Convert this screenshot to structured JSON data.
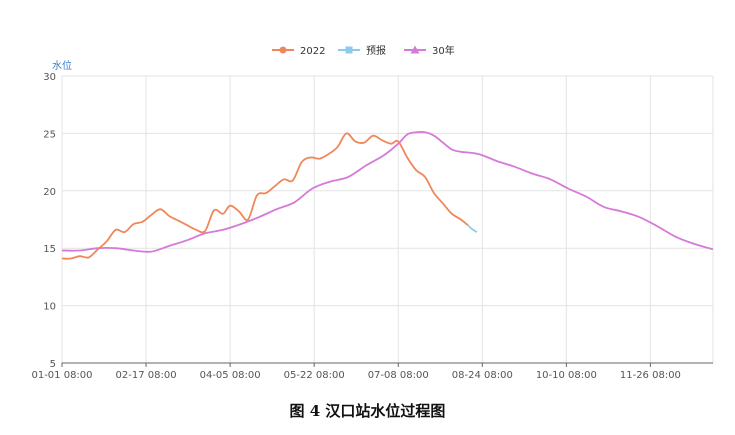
{
  "caption": "图 4    汉口站水位过程图",
  "chart_data": {
    "type": "line",
    "ylabel": "水位",
    "ylim": [
      5,
      30
    ],
    "yticks": [
      "5",
      "10",
      "15",
      "20",
      "25",
      "30"
    ],
    "xlim": [
      "01-01",
      "12-31"
    ],
    "xticks": [
      "01-01 08:00",
      "02-17 08:00",
      "04-05 08:00",
      "05-22 08:00",
      "07-08 08:00",
      "08-24 08:00",
      "10-10 08:00",
      "11-26 08:00"
    ],
    "grid": true,
    "legend_position": "top-center",
    "series": [
      {
        "name": "2022",
        "color": "#f0875a",
        "points": [
          [
            "01-01",
            14.1
          ],
          [
            "01-06",
            14.1
          ],
          [
            "01-11",
            14.3
          ],
          [
            "01-16",
            14.2
          ],
          [
            "01-21",
            14.9
          ],
          [
            "01-26",
            15.6
          ],
          [
            "01-31",
            16.6
          ],
          [
            "02-05",
            16.4
          ],
          [
            "02-10",
            17.1
          ],
          [
            "02-15",
            17.3
          ],
          [
            "02-20",
            17.9
          ],
          [
            "02-25",
            18.4
          ],
          [
            "03-02",
            17.8
          ],
          [
            "03-07",
            17.4
          ],
          [
            "03-12",
            17.0
          ],
          [
            "03-17",
            16.6
          ],
          [
            "03-22",
            16.5
          ],
          [
            "03-27",
            18.3
          ],
          [
            "04-01",
            18.0
          ],
          [
            "04-05",
            18.7
          ],
          [
            "04-10",
            18.2
          ],
          [
            "04-15",
            17.5
          ],
          [
            "04-20",
            19.6
          ],
          [
            "04-25",
            19.8
          ],
          [
            "04-30",
            20.4
          ],
          [
            "05-05",
            21.0
          ],
          [
            "05-10",
            20.9
          ],
          [
            "05-15",
            22.5
          ],
          [
            "05-20",
            22.9
          ],
          [
            "05-25",
            22.8
          ],
          [
            "05-30",
            23.2
          ],
          [
            "06-04",
            23.8
          ],
          [
            "06-09",
            25.0
          ],
          [
            "06-14",
            24.3
          ],
          [
            "06-19",
            24.2
          ],
          [
            "06-24",
            24.8
          ],
          [
            "06-29",
            24.4
          ],
          [
            "07-04",
            24.1
          ],
          [
            "07-08",
            24.3
          ],
          [
            "07-13",
            22.9
          ],
          [
            "07-18",
            21.8
          ],
          [
            "07-23",
            21.2
          ],
          [
            "07-28",
            19.8
          ],
          [
            "08-02",
            18.9
          ],
          [
            "08-07",
            18.0
          ],
          [
            "08-12",
            17.5
          ],
          [
            "08-16",
            17.0
          ]
        ]
      },
      {
        "name": "预报",
        "color": "#8fc9eb",
        "points": [
          [
            "08-16",
            17.0
          ],
          [
            "08-18",
            16.7
          ],
          [
            "08-21",
            16.4
          ]
        ]
      },
      {
        "name": "30年",
        "color": "#d57ad8",
        "points": [
          [
            "01-01",
            14.8
          ],
          [
            "01-11",
            14.8
          ],
          [
            "01-21",
            15.0
          ],
          [
            "01-31",
            15.0
          ],
          [
            "02-10",
            14.8
          ],
          [
            "02-20",
            14.7
          ],
          [
            "03-02",
            15.2
          ],
          [
            "03-12",
            15.7
          ],
          [
            "03-22",
            16.3
          ],
          [
            "04-01",
            16.6
          ],
          [
            "04-11",
            17.1
          ],
          [
            "04-21",
            17.7
          ],
          [
            "05-01",
            18.4
          ],
          [
            "05-11",
            19.0
          ],
          [
            "05-21",
            20.2
          ],
          [
            "05-31",
            20.8
          ],
          [
            "06-10",
            21.2
          ],
          [
            "06-20",
            22.2
          ],
          [
            "06-30",
            23.1
          ],
          [
            "07-08",
            24.1
          ],
          [
            "07-13",
            24.9
          ],
          [
            "07-18",
            25.1
          ],
          [
            "07-23",
            25.1
          ],
          [
            "07-28",
            24.8
          ],
          [
            "08-02",
            24.2
          ],
          [
            "08-07",
            23.6
          ],
          [
            "08-12",
            23.4
          ],
          [
            "08-22",
            23.2
          ],
          [
            "09-01",
            22.6
          ],
          [
            "09-11",
            22.1
          ],
          [
            "09-21",
            21.5
          ],
          [
            "10-01",
            21.0
          ],
          [
            "10-11",
            20.2
          ],
          [
            "10-21",
            19.5
          ],
          [
            "10-31",
            18.6
          ],
          [
            "11-10",
            18.2
          ],
          [
            "11-20",
            17.7
          ],
          [
            "11-30",
            16.9
          ],
          [
            "12-10",
            16.0
          ],
          [
            "12-20",
            15.4
          ],
          [
            "12-31",
            14.9
          ]
        ]
      }
    ]
  }
}
